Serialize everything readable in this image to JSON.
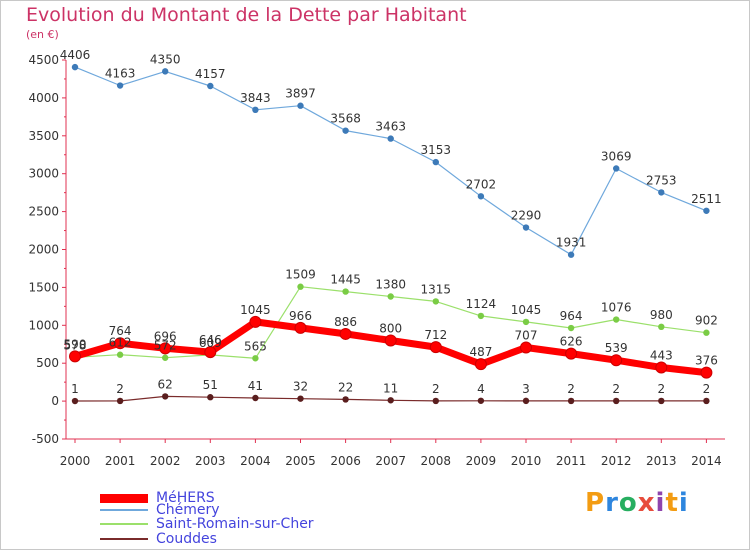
{
  "header": {
    "title": "Evolution du Montant de la Dette par Habitant",
    "unit": "(en €)"
  },
  "logo": {
    "text": "Proxiti",
    "colors": [
      "#f39c12",
      "#2e86de",
      "#27ae60",
      "#e74c3c",
      "#8e44ad"
    ]
  },
  "chart_data": {
    "type": "line",
    "title": "Evolution du Montant de la Dette par Habitant",
    "ylabel": "(en €)",
    "xlabel": "",
    "x": [
      "2000",
      "2001",
      "2002",
      "2003",
      "2004",
      "2005",
      "2006",
      "2007",
      "2008",
      "2009",
      "2010",
      "2011",
      "2012",
      "2013",
      "2014"
    ],
    "ylim": [
      -500,
      4500
    ],
    "yticks": [
      -500,
      0,
      500,
      1000,
      1500,
      2000,
      2500,
      3000,
      3500,
      4000,
      4500
    ],
    "grid": false,
    "legend_position": "bottom-left",
    "series": [
      {
        "name": "MéHERS",
        "color": "#ff0000",
        "values": [
          590,
          764,
          696,
          646,
          1045,
          966,
          886,
          800,
          712,
          487,
          707,
          626,
          539,
          443,
          376
        ],
        "labels": [
          "590",
          "764",
          "696",
          "646",
          "1045",
          "966",
          "886",
          "800",
          "712",
          "487",
          "707",
          "626",
          "539",
          "443",
          "376"
        ]
      },
      {
        "name": "Chémery",
        "color": "#6fa8dc",
        "marker": "#3d7ab8",
        "values": [
          4406,
          4163,
          4350,
          4157,
          3843,
          3897,
          3568,
          3463,
          3153,
          2702,
          2290,
          1931,
          3069,
          2753,
          2511
        ],
        "labels": [
          "4406",
          "4163",
          "4350",
          "4157",
          "3843",
          "3897",
          "3568",
          "3463",
          "3153",
          "2702",
          "2290",
          "1931",
          "3069",
          "2753",
          "2511"
        ]
      },
      {
        "name": "Saint-Romain-sur-Cher",
        "color": "#9be06b",
        "marker": "#7acc45",
        "values": [
          578,
          612,
          572,
          609,
          565,
          1509,
          1445,
          1380,
          1315,
          1124,
          1045,
          964,
          1076,
          980,
          902
        ],
        "labels": [
          "578",
          "612",
          "572",
          "609",
          "565",
          "1509",
          "1445",
          "1380",
          "1315",
          "1124",
          "1045",
          "964",
          "1076",
          "980",
          "902"
        ]
      },
      {
        "name": "Couddes",
        "color": "#7a2b2b",
        "marker": "#5a1e1e",
        "values": [
          1,
          2,
          62,
          51,
          41,
          32,
          22,
          11,
          2,
          4,
          3,
          2,
          2,
          2,
          2
        ],
        "labels": [
          "1",
          "2",
          "62",
          "51",
          "41",
          "32",
          "22",
          "11",
          "2",
          "4",
          "3",
          "2",
          "2",
          "2",
          "2"
        ]
      }
    ]
  }
}
